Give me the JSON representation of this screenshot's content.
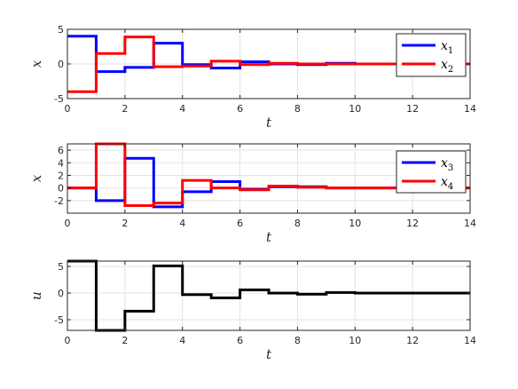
{
  "chart_data": [
    {
      "type": "line",
      "step": true,
      "xlabel": "t",
      "ylabel": "x",
      "xlim": [
        0,
        14
      ],
      "ylim": [
        -5,
        5
      ],
      "xticks": [
        "0",
        "2",
        "4",
        "6",
        "8",
        "10",
        "12",
        "14"
      ],
      "yticks": [
        "-5",
        "0",
        "5"
      ],
      "grid": true,
      "legend_position": "top-right",
      "series": [
        {
          "name": "x",
          "subscript": "1",
          "color": "#0000ff",
          "x": [
            0,
            1,
            2,
            3,
            4,
            5,
            6,
            7,
            8,
            9,
            10,
            11,
            12,
            13,
            14
          ],
          "y": [
            4.0,
            -1.1,
            -0.5,
            3.0,
            -0.1,
            -0.6,
            0.3,
            0.0,
            -0.1,
            0.1,
            0.0,
            0.0,
            0.0,
            0.0,
            0.0
          ]
        },
        {
          "name": "x",
          "subscript": "2",
          "color": "#ff0000",
          "x": [
            0,
            1,
            2,
            3,
            4,
            5,
            6,
            7,
            8,
            9,
            10,
            11,
            12,
            13,
            14
          ],
          "y": [
            -4.0,
            1.5,
            3.9,
            -0.4,
            -0.3,
            0.4,
            -0.1,
            0.1,
            0.0,
            0.0,
            0.0,
            0.0,
            0.0,
            0.0,
            0.0
          ]
        }
      ]
    },
    {
      "type": "line",
      "step": true,
      "xlabel": "t",
      "ylabel": "x",
      "xlim": [
        0,
        14
      ],
      "ylim": [
        -4,
        7
      ],
      "xticks": [
        "0",
        "2",
        "4",
        "6",
        "8",
        "10",
        "12",
        "14"
      ],
      "yticks": [
        "-2",
        "0",
        "2",
        "4",
        "6"
      ],
      "grid": true,
      "legend_position": "top-right",
      "series": [
        {
          "name": "x",
          "subscript": "3",
          "color": "#0000ff",
          "x": [
            0,
            1,
            2,
            3,
            4,
            5,
            6,
            7,
            8,
            9,
            10,
            11,
            12,
            13,
            14
          ],
          "y": [
            0.0,
            -2.0,
            4.7,
            -3.0,
            -0.6,
            1.0,
            -0.2,
            0.2,
            0.2,
            0.0,
            0.0,
            0.0,
            0.0,
            0.0,
            0.0
          ]
        },
        {
          "name": "x",
          "subscript": "4",
          "color": "#ff0000",
          "x": [
            0,
            1,
            2,
            3,
            4,
            5,
            6,
            7,
            8,
            9,
            10,
            11,
            12,
            13,
            14
          ],
          "y": [
            0.0,
            7.0,
            -2.8,
            -2.4,
            1.2,
            0.0,
            -0.3,
            0.3,
            0.1,
            0.0,
            0.0,
            0.0,
            0.0,
            0.0,
            0.0
          ]
        }
      ]
    },
    {
      "type": "line",
      "step": true,
      "xlabel": "t",
      "ylabel": "u",
      "xlim": [
        0,
        14
      ],
      "ylim": [
        -7,
        6
      ],
      "xticks": [
        "0",
        "2",
        "4",
        "6",
        "8",
        "10",
        "12",
        "14"
      ],
      "yticks": [
        "-5",
        "0",
        "5"
      ],
      "grid": true,
      "series": [
        {
          "color": "#000000",
          "x": [
            0,
            1,
            2,
            3,
            4,
            5,
            6,
            7,
            8,
            9,
            10,
            11,
            12,
            13,
            14
          ],
          "y": [
            6.0,
            -7.0,
            -3.4,
            5.1,
            -0.3,
            -0.9,
            0.6,
            0.0,
            -0.2,
            0.1,
            0.0,
            0.0,
            0.0,
            0.0,
            0.0
          ]
        }
      ]
    }
  ]
}
